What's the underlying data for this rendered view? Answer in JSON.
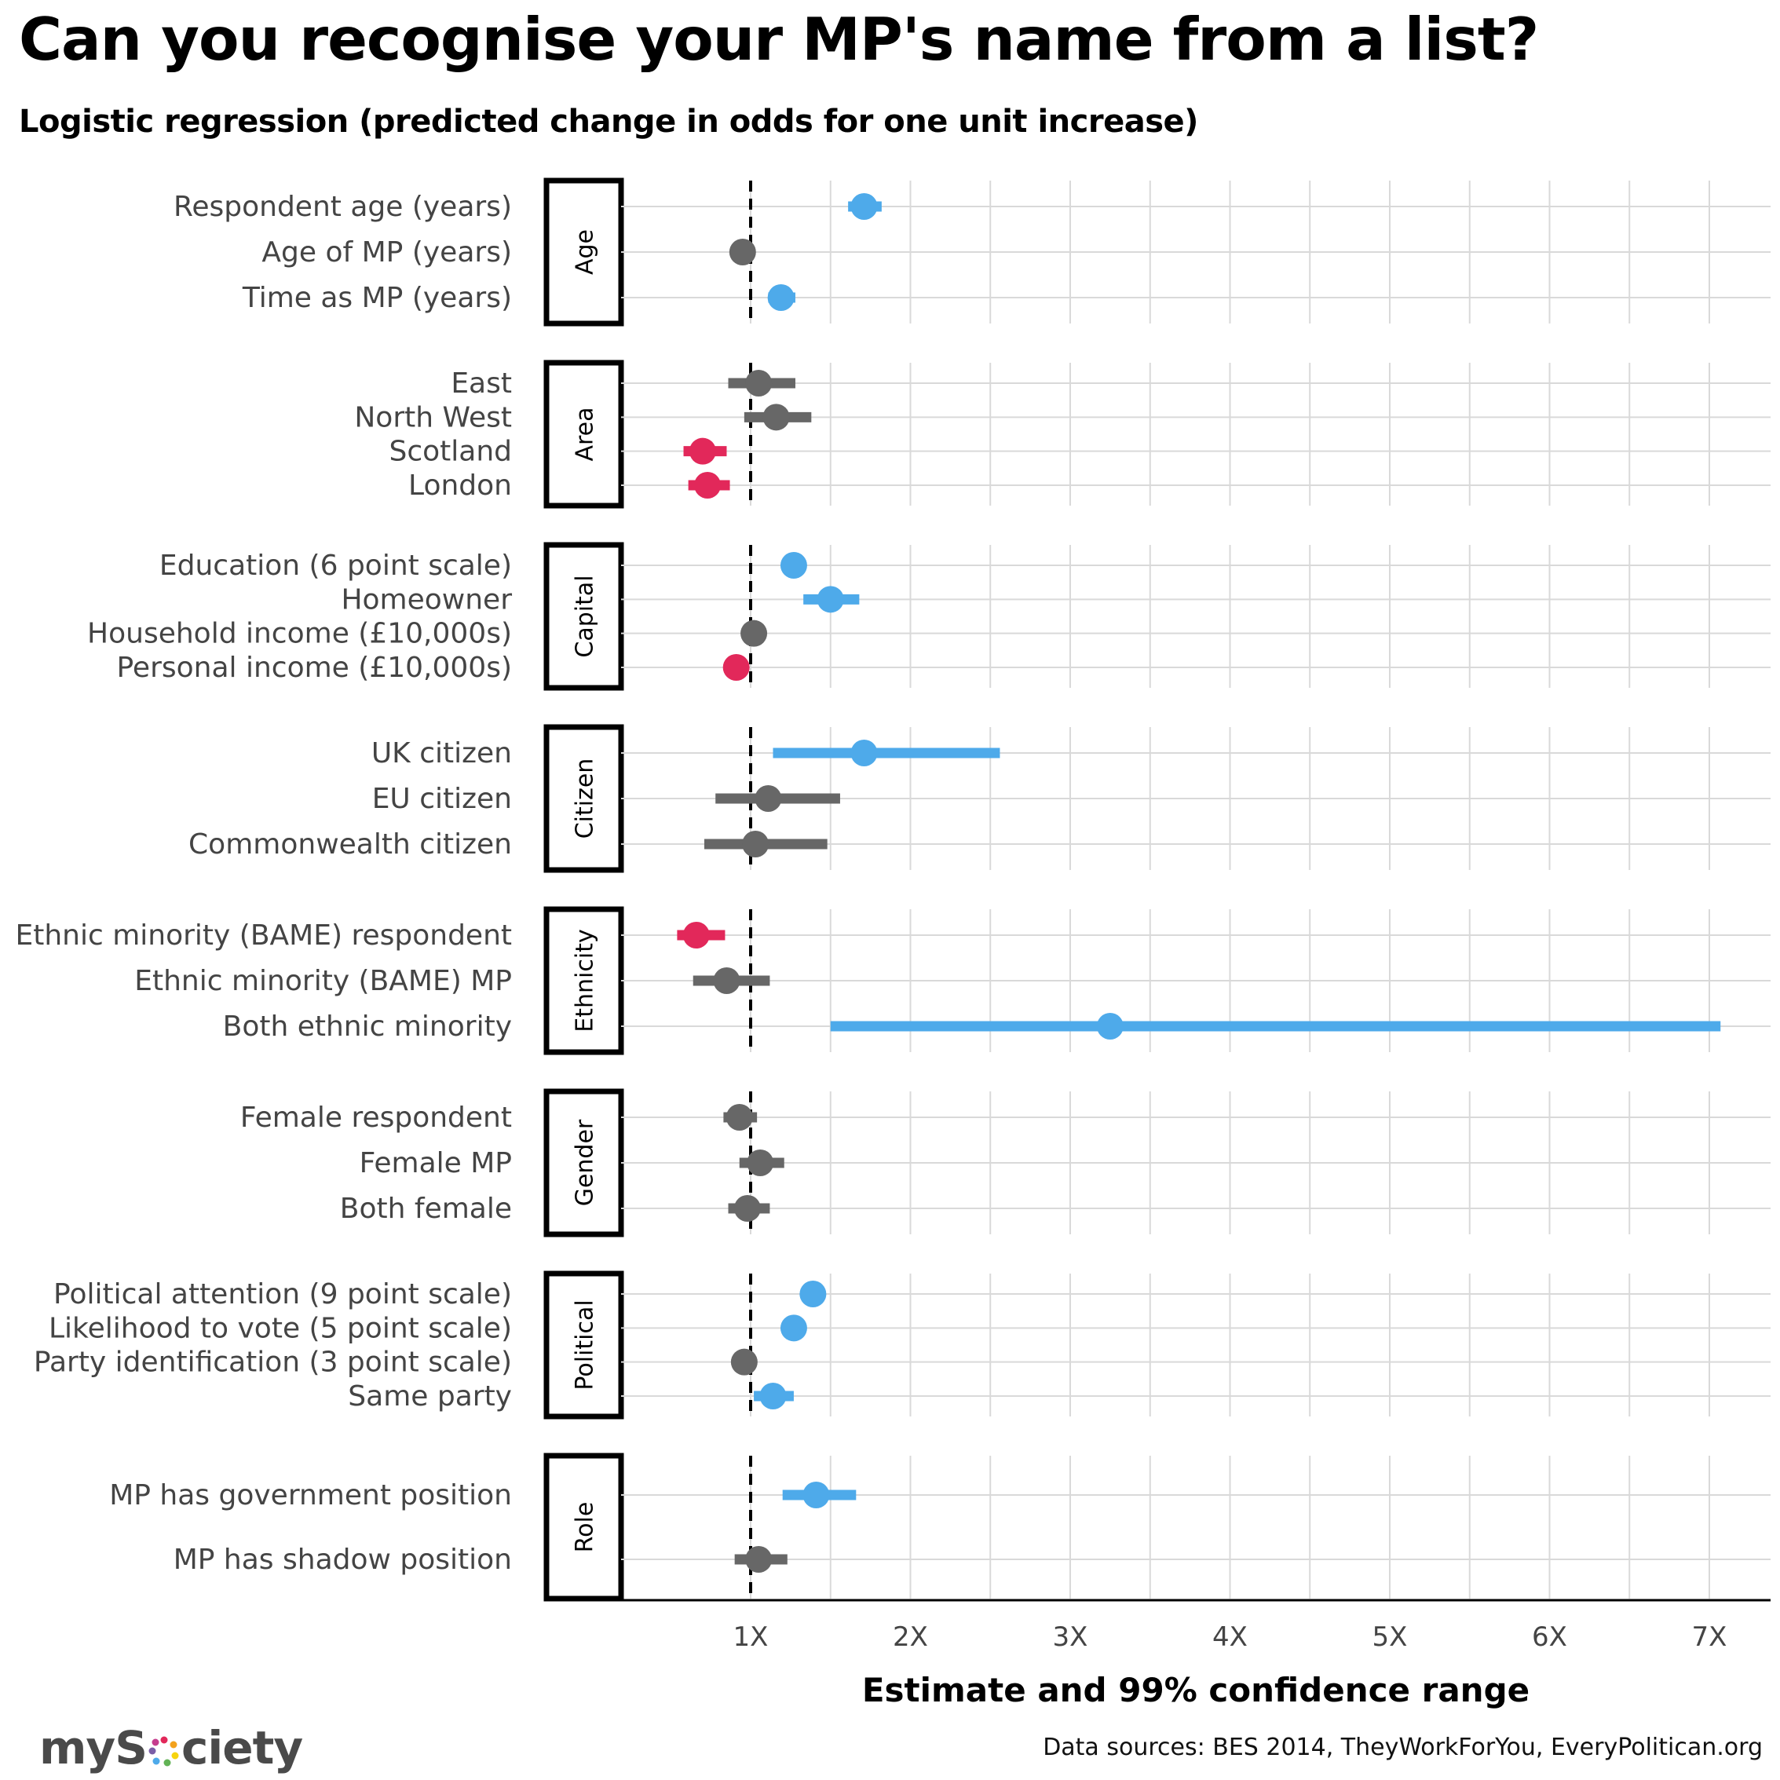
{
  "title": "Can you recognise your MP's name from a list?",
  "subtitle": "Logistic regression (predicted change in odds for one unit increase)",
  "footer": {
    "logo_text": "mySociety",
    "sources": "Data sources: BES 2014, TheyWorkForYou, EveryPolitican.org"
  },
  "colors": {
    "positive": "#4eaaea",
    "neutral": "#676767",
    "negative": "#e2285a",
    "grid": "#d9d9d9",
    "reference": "#000000"
  },
  "chart_data": {
    "type": "forest",
    "xlabel": "Estimate and 99% confidence range",
    "xlim": [
      0.2,
      7.4
    ],
    "xticks": [
      1,
      2,
      3,
      4,
      5,
      6,
      7
    ],
    "xtick_labels": [
      "1X",
      "2X",
      "3X",
      "4X",
      "5X",
      "6X",
      "7X"
    ],
    "reference_line": 1,
    "grid": true,
    "groups": [
      {
        "name": "Age",
        "items": [
          {
            "label": "Respondent age (years)",
            "estimate": 1.71,
            "low": 1.61,
            "high": 1.82,
            "sig": "positive"
          },
          {
            "label": "Age of MP (years)",
            "estimate": 0.95,
            "low": 0.93,
            "high": 0.97,
            "sig": "neutral"
          },
          {
            "label": "Time as MP (years)",
            "estimate": 1.19,
            "low": 1.11,
            "high": 1.28,
            "sig": "positive"
          }
        ]
      },
      {
        "name": "Area",
        "items": [
          {
            "label": "East",
            "estimate": 1.05,
            "low": 0.86,
            "high": 1.28,
            "sig": "neutral"
          },
          {
            "label": "North West",
            "estimate": 1.16,
            "low": 0.96,
            "high": 1.38,
            "sig": "neutral"
          },
          {
            "label": "Scotland",
            "estimate": 0.7,
            "low": 0.58,
            "high": 0.85,
            "sig": "negative"
          },
          {
            "label": "London",
            "estimate": 0.73,
            "low": 0.61,
            "high": 0.87,
            "sig": "negative"
          }
        ]
      },
      {
        "name": "Capital",
        "items": [
          {
            "label": "Education (6 point scale)",
            "estimate": 1.27,
            "low": 1.22,
            "high": 1.32,
            "sig": "positive"
          },
          {
            "label": "Homeowner",
            "estimate": 1.5,
            "low": 1.33,
            "high": 1.68,
            "sig": "positive"
          },
          {
            "label": "Household income (£10,000s)",
            "estimate": 1.02,
            "low": 0.99,
            "high": 1.05,
            "sig": "neutral"
          },
          {
            "label": "Personal income (£10,000s)",
            "estimate": 0.91,
            "low": 0.88,
            "high": 0.94,
            "sig": "negative"
          }
        ]
      },
      {
        "name": "Citizen",
        "items": [
          {
            "label": "UK citizen",
            "estimate": 1.71,
            "low": 1.14,
            "high": 2.56,
            "sig": "positive"
          },
          {
            "label": "EU citizen",
            "estimate": 1.11,
            "low": 0.78,
            "high": 1.56,
            "sig": "neutral"
          },
          {
            "label": "Commonwealth citizen",
            "estimate": 1.03,
            "low": 0.71,
            "high": 1.48,
            "sig": "neutral"
          }
        ]
      },
      {
        "name": "Ethnicity",
        "items": [
          {
            "label": "Ethnic minority (BAME) respondent",
            "estimate": 0.66,
            "low": 0.54,
            "high": 0.84,
            "sig": "negative"
          },
          {
            "label": "Ethnic minority (BAME) MP",
            "estimate": 0.85,
            "low": 0.64,
            "high": 1.12,
            "sig": "neutral"
          },
          {
            "label": "Both ethnic minority",
            "estimate": 3.25,
            "low": 1.5,
            "high": 7.07,
            "sig": "positive"
          }
        ]
      },
      {
        "name": "Gender",
        "items": [
          {
            "label": "Female respondent",
            "estimate": 0.93,
            "low": 0.83,
            "high": 1.04,
            "sig": "neutral"
          },
          {
            "label": "Female MP",
            "estimate": 1.06,
            "low": 0.93,
            "high": 1.21,
            "sig": "neutral"
          },
          {
            "label": "Both female",
            "estimate": 0.98,
            "low": 0.86,
            "high": 1.12,
            "sig": "neutral"
          }
        ]
      },
      {
        "name": "Political",
        "items": [
          {
            "label": "Political attention (9 point scale)",
            "estimate": 1.39,
            "low": 1.36,
            "high": 1.42,
            "sig": "positive"
          },
          {
            "label": "Likelihood to vote (5 point scale)",
            "estimate": 1.27,
            "low": 1.24,
            "high": 1.3,
            "sig": "positive"
          },
          {
            "label": "Party identification (3 point scale)",
            "estimate": 0.96,
            "low": 0.94,
            "high": 0.98,
            "sig": "neutral"
          },
          {
            "label": "Same party",
            "estimate": 1.14,
            "low": 1.02,
            "high": 1.27,
            "sig": "positive"
          }
        ]
      },
      {
        "name": "Role",
        "items": [
          {
            "label": "MP has government position",
            "estimate": 1.41,
            "low": 1.2,
            "high": 1.66,
            "sig": "positive"
          },
          {
            "label": "MP has shadow position",
            "estimate": 1.05,
            "low": 0.9,
            "high": 1.23,
            "sig": "neutral"
          }
        ]
      }
    ]
  }
}
